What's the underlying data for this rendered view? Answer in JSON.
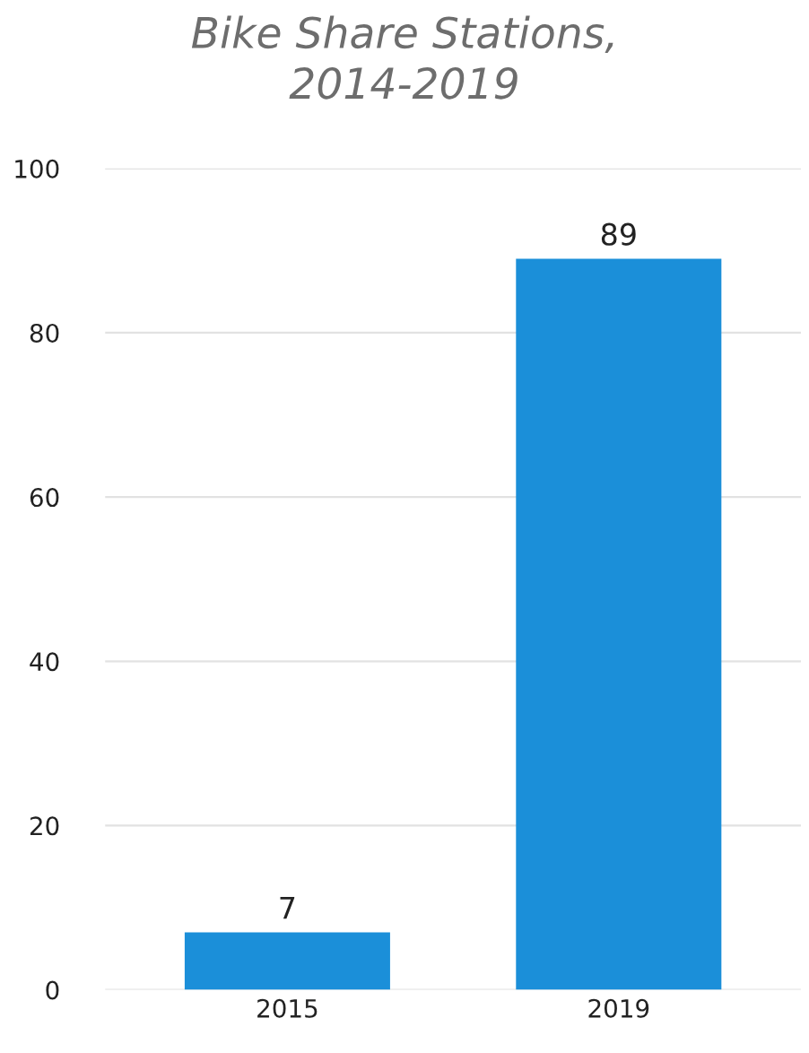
{
  "chart_data": {
    "type": "bar",
    "title": "Bike Share Stations,\n2014-2019",
    "categories": [
      "2015",
      "2019"
    ],
    "values": [
      7,
      89
    ],
    "color": "#1b8fd9",
    "ylim": [
      0,
      100
    ],
    "yticks": [
      0,
      20,
      40,
      60,
      80,
      100
    ],
    "grid": "y",
    "data_labels": true
  }
}
